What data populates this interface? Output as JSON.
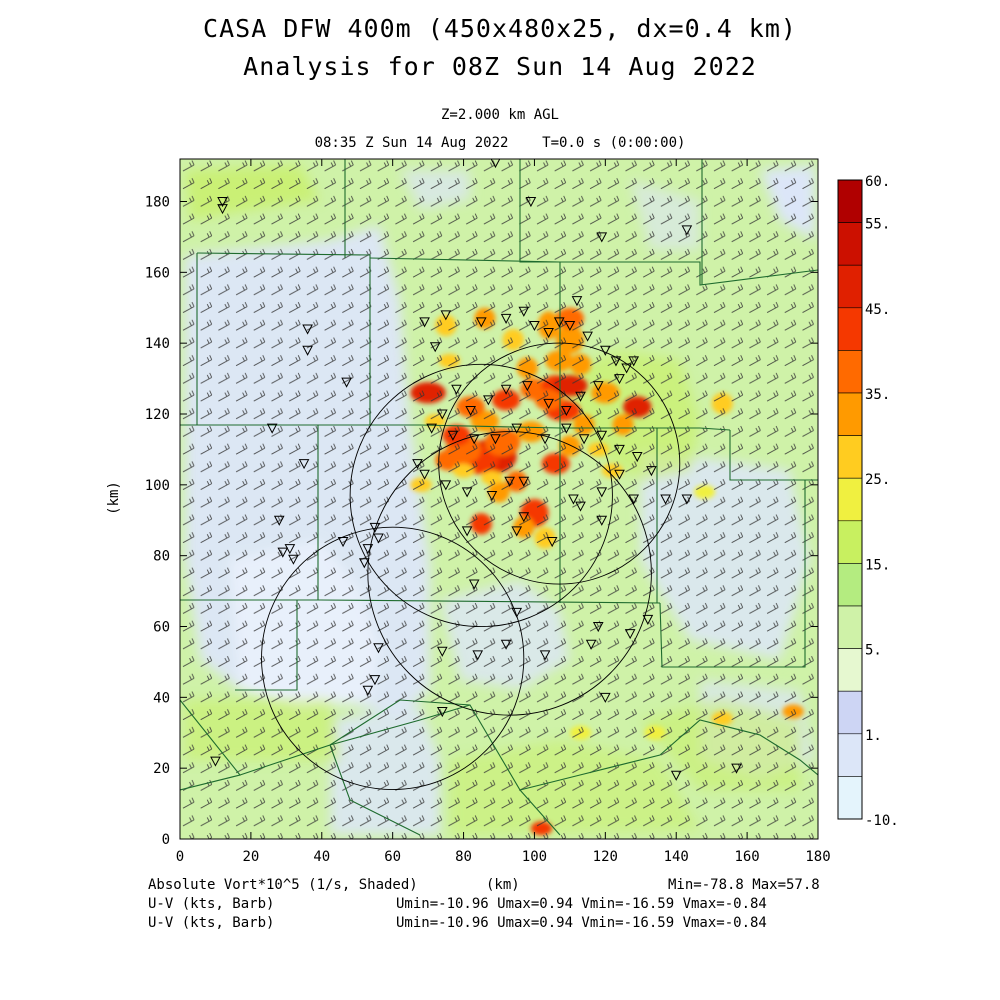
{
  "header": {
    "title_line1": "CASA DFW 400m (450x480x25, dx=0.4 km)",
    "title_line2": "Analysis for 08Z Sun 14 Aug 2022",
    "level": "Z=2.000 km AGL",
    "valid_time": "08:35 Z Sun 14 Aug 2022    T=0.0 s (0:00:00)"
  },
  "axes": {
    "x_label": "(km)",
    "y_label": "(km)",
    "x_range": [
      0,
      180
    ],
    "y_range": [
      0,
      192
    ],
    "x_ticks": [
      0,
      20,
      40,
      60,
      80,
      100,
      120,
      140,
      160,
      180
    ],
    "y_ticks": [
      0,
      20,
      40,
      60,
      80,
      100,
      120,
      140,
      160,
      180
    ]
  },
  "colorbar": {
    "labels": [
      "60.",
      "55.",
      "45.",
      "35.",
      "25.",
      "15.",
      "5.",
      "1.",
      "-10."
    ],
    "colors": [
      "#b00000",
      "#cc1000",
      "#e02000",
      "#f53800",
      "#ff6a00",
      "#ff9a00",
      "#ffcc20",
      "#f0f040",
      "#c8f060",
      "#b4ec80",
      "#cff2a8",
      "#e6f8d0",
      "#cdd5f4",
      "#dce6f8",
      "#e4f4fc"
    ]
  },
  "footer": {
    "field_label": "Absolute Vort*10^5 (1/s, Shaded)",
    "field_unit": "(km)",
    "field_range": "Min=-78.8 Max=57.8",
    "barb1_label": "U-V (kts, Barb)",
    "barb1_range": "Umin=-10.96 Umax=0.94 Vmin=-16.59 Vmax=-0.84",
    "barb2_label": "U-V (kts, Barb)",
    "barb2_range": "Umin=-10.96 Umax=0.94 Vmin=-16.59 Vmax=-0.84"
  },
  "map_data": {
    "radar_rings": [
      {
        "cx": 107,
        "cy": 106,
        "r": 34
      },
      {
        "cx": 85,
        "cy": 97,
        "r": 37
      },
      {
        "cx": 93,
        "cy": 75,
        "r": 40
      },
      {
        "cx": 60,
        "cy": 51,
        "r": 37
      }
    ],
    "stations": [
      [
        12,
        180
      ],
      [
        12,
        178
      ],
      [
        89,
        191
      ],
      [
        99,
        180
      ],
      [
        119,
        170
      ],
      [
        143,
        172
      ],
      [
        36,
        144
      ],
      [
        36,
        138
      ],
      [
        47,
        129
      ],
      [
        26,
        116
      ],
      [
        35,
        106
      ],
      [
        69,
        146
      ],
      [
        72,
        139
      ],
      [
        75,
        148
      ],
      [
        85,
        146
      ],
      [
        92,
        147
      ],
      [
        97,
        149
      ],
      [
        100,
        145
      ],
      [
        104,
        143
      ],
      [
        107,
        146
      ],
      [
        110,
        145
      ],
      [
        112,
        152
      ],
      [
        115,
        142
      ],
      [
        120,
        138
      ],
      [
        123,
        135
      ],
      [
        126,
        133
      ],
      [
        128,
        135
      ],
      [
        124,
        130
      ],
      [
        118,
        128
      ],
      [
        113,
        125
      ],
      [
        109,
        121
      ],
      [
        104,
        123
      ],
      [
        98,
        128
      ],
      [
        92,
        127
      ],
      [
        87,
        124
      ],
      [
        82,
        121
      ],
      [
        78,
        127
      ],
      [
        74,
        120
      ],
      [
        71,
        116
      ],
      [
        77,
        114
      ],
      [
        83,
        113
      ],
      [
        89,
        113
      ],
      [
        95,
        116
      ],
      [
        103,
        113
      ],
      [
        109,
        116
      ],
      [
        114,
        113
      ],
      [
        119,
        114
      ],
      [
        124,
        110
      ],
      [
        129,
        108
      ],
      [
        124,
        103
      ],
      [
        111,
        96
      ],
      [
        119,
        98
      ],
      [
        128,
        96
      ],
      [
        133,
        104
      ],
      [
        137,
        96
      ],
      [
        143,
        96
      ],
      [
        113,
        94
      ],
      [
        119,
        90
      ],
      [
        67,
        106
      ],
      [
        69,
        103
      ],
      [
        81,
        98
      ],
      [
        88,
        97
      ],
      [
        93,
        101
      ],
      [
        97,
        101
      ],
      [
        97,
        91
      ],
      [
        95,
        87
      ],
      [
        81,
        87
      ],
      [
        55,
        88
      ],
      [
        56,
        85
      ],
      [
        53,
        82
      ],
      [
        52,
        78
      ],
      [
        46,
        84
      ],
      [
        31,
        82
      ],
      [
        29,
        81
      ],
      [
        32,
        79
      ],
      [
        28,
        90
      ],
      [
        75,
        100
      ],
      [
        105,
        84
      ],
      [
        83,
        72
      ],
      [
        95,
        64
      ],
      [
        103,
        52
      ],
      [
        116,
        55
      ],
      [
        118,
        60
      ],
      [
        127,
        58
      ],
      [
        132,
        62
      ],
      [
        84,
        52
      ],
      [
        74,
        53
      ],
      [
        56,
        54
      ],
      [
        55,
        45
      ],
      [
        53,
        42
      ],
      [
        74,
        36
      ],
      [
        92,
        55
      ],
      [
        120,
        40
      ],
      [
        140,
        18
      ],
      [
        157,
        20
      ],
      [
        10,
        22
      ]
    ]
  }
}
